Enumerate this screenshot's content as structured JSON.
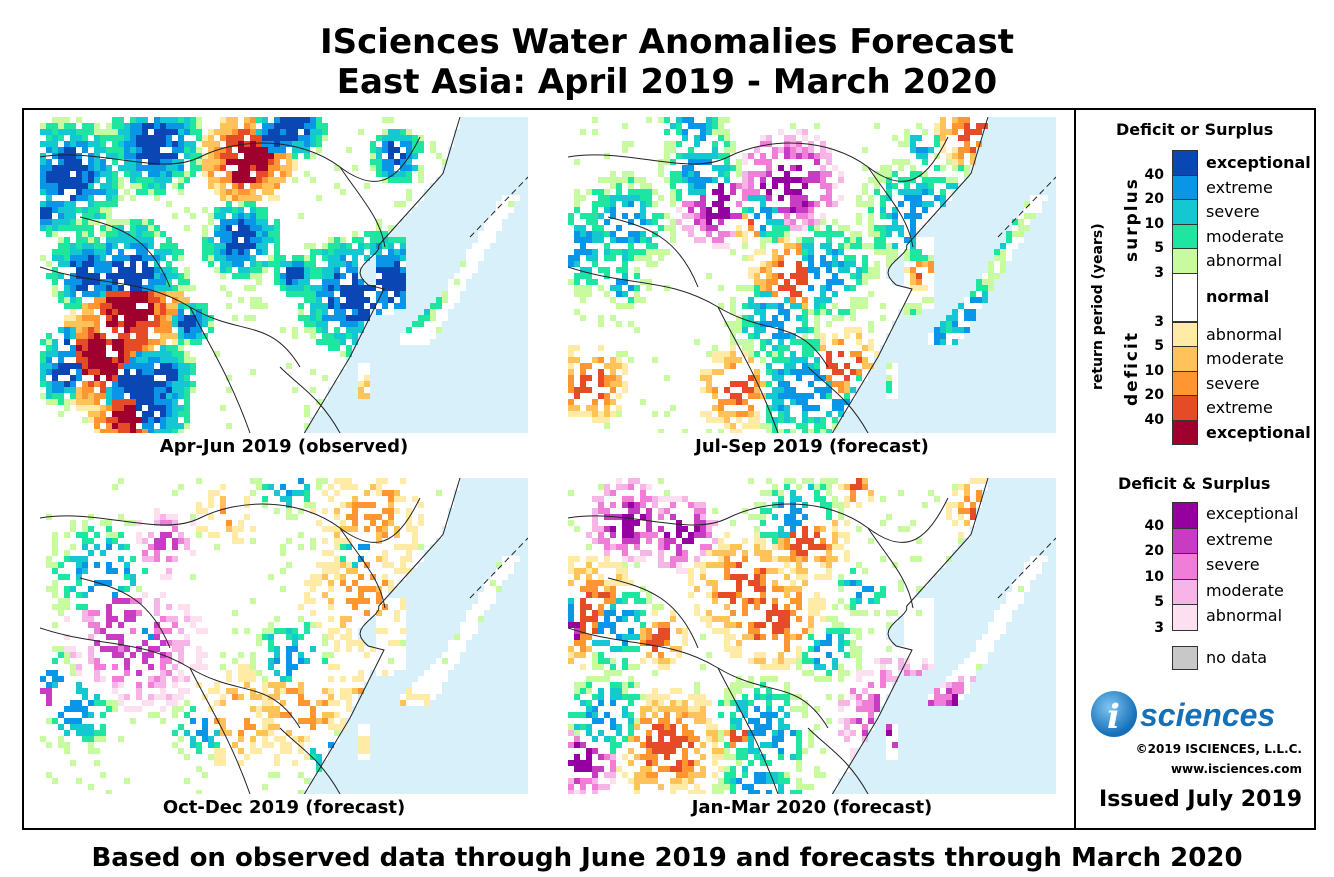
{
  "header": {
    "line1": "ISciences Water Anomalies Forecast",
    "line2": "East Asia: April 2019 - March 2020"
  },
  "maps": [
    {
      "caption": "Apr-Jun 2019 (observed)",
      "seed": 11,
      "bias": "wet"
    },
    {
      "caption": "Jul-Sep 2019 (forecast)",
      "seed": 23,
      "bias": "mixed"
    },
    {
      "caption": "Oct-Dec 2019 (forecast)",
      "seed": 37,
      "bias": "sparse"
    },
    {
      "caption": "Jan-Mar 2020 (forecast)",
      "seed": 53,
      "bias": "both"
    }
  ],
  "legend": {
    "title1": "Deficit or Surplus",
    "axis_label": "return period (years)",
    "surplus_label": "surplus",
    "deficit_label": "deficit",
    "surplus": [
      {
        "label": "exceptional",
        "color": "#0a46b4",
        "bold": true
      },
      {
        "label": "extreme",
        "color": "#0a96e6",
        "bold": false
      },
      {
        "label": "severe",
        "color": "#14c8d2",
        "bold": false
      },
      {
        "label": "moderate",
        "color": "#1ee6a0",
        "bold": false
      },
      {
        "label": "abnormal",
        "color": "#c8faa0",
        "bold": false
      }
    ],
    "surplus_nums": [
      "40",
      "20",
      "10",
      "5",
      "3"
    ],
    "normal": {
      "label": "normal",
      "color": "#ffffff"
    },
    "deficit": [
      {
        "label": "abnormal",
        "color": "#ffeba5",
        "bold": false
      },
      {
        "label": "moderate",
        "color": "#ffc35a",
        "bold": false
      },
      {
        "label": "severe",
        "color": "#ff9632",
        "bold": false
      },
      {
        "label": "extreme",
        "color": "#e64b28",
        "bold": false
      },
      {
        "label": "exceptional",
        "color": "#a0002d",
        "bold": true
      }
    ],
    "deficit_nums": [
      "3",
      "5",
      "10",
      "20",
      "40"
    ],
    "title2": "Deficit & Surplus",
    "both": [
      {
        "label": "exceptional",
        "color": "#9600a0"
      },
      {
        "label": "extreme",
        "color": "#c83cc3"
      },
      {
        "label": "severe",
        "color": "#f07dd7"
      },
      {
        "label": "moderate",
        "color": "#f7b4e6"
      },
      {
        "label": "abnormal",
        "color": "#fde0f0"
      }
    ],
    "both_nums": [
      "40",
      "20",
      "10",
      "5",
      "3"
    ],
    "nodata": {
      "label": "no data",
      "color": "#c8c8c8"
    }
  },
  "branding": {
    "logo_letter": "i",
    "logo_text": "sciences",
    "copyright": "©2019 ISCIENCES, L.L.C.",
    "website": "www.isciences.com",
    "issued": "Issued July 2019"
  },
  "colors": {
    "ocean": "#d7f0fa",
    "border": "#222222"
  },
  "footer": "Based on observed data through June 2019 and forecasts through March 2020"
}
